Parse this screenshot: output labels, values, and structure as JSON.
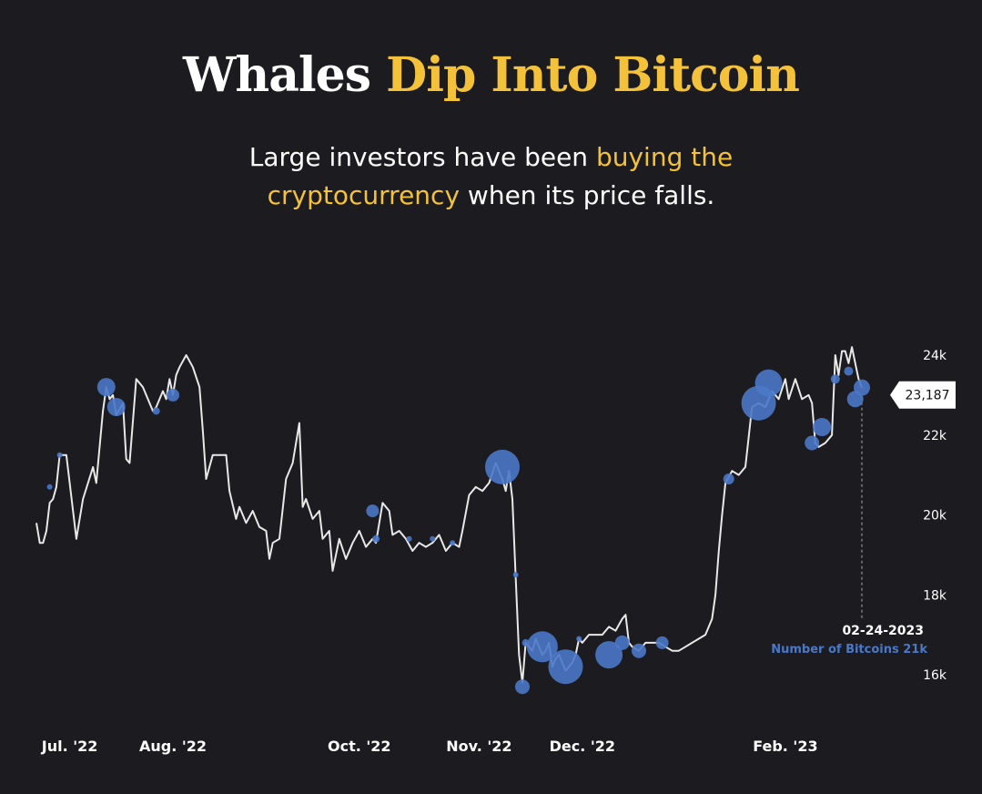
{
  "header": {
    "title_part1": "Whales",
    "title_part2": "Dip Into Bitcoin",
    "subtitle_part1": "Large investors have been",
    "subtitle_part2": "buying the",
    "subtitle_part3": "cryptocurrency",
    "subtitle_part4": "when its price falls."
  },
  "colors": {
    "background": "#1c1b20",
    "accent": "#f3c13a",
    "line": "#e8e8e8",
    "bubble": "#4a78c8"
  },
  "chart_data": {
    "type": "line",
    "y_range": [
      15500,
      24500
    ],
    "x_range": [
      "2022-06-21",
      "2023-02-27"
    ],
    "y_ticks": [
      {
        "value": 24000,
        "label": "24k"
      },
      {
        "value": 22000,
        "label": "22k"
      },
      {
        "value": 20000,
        "label": "20k"
      },
      {
        "value": 18000,
        "label": "18k"
      },
      {
        "value": 16000,
        "label": "16k"
      }
    ],
    "x_ticks": [
      {
        "date": "2022-07-01",
        "label": "Jul. '22"
      },
      {
        "date": "2022-08-01",
        "label": "Aug. '22"
      },
      {
        "date": "2022-09-26",
        "label": "Oct. '22"
      },
      {
        "date": "2022-11-01",
        "label": "Nov. '22"
      },
      {
        "date": "2022-12-02",
        "label": "Dec. '22"
      },
      {
        "date": "2023-02-01",
        "label": "Feb. '23"
      }
    ],
    "series": [
      {
        "points": [
          [
            "2022-06-21",
            19800
          ],
          [
            "2022-06-22",
            19300
          ],
          [
            "2022-06-23",
            19300
          ],
          [
            "2022-06-24",
            19600
          ],
          [
            "2022-06-25",
            20300
          ],
          [
            "2022-06-26",
            20400
          ],
          [
            "2022-06-27",
            20700
          ],
          [
            "2022-06-28",
            21500
          ],
          [
            "2022-06-30",
            21500
          ],
          [
            "2022-07-03",
            19400
          ],
          [
            "2022-07-05",
            20400
          ],
          [
            "2022-07-08",
            21200
          ],
          [
            "2022-07-09",
            20800
          ],
          [
            "2022-07-11",
            22600
          ],
          [
            "2022-07-12",
            23200
          ],
          [
            "2022-07-13",
            22900
          ],
          [
            "2022-07-14",
            23000
          ],
          [
            "2022-07-15",
            22500
          ],
          [
            "2022-07-17",
            22800
          ],
          [
            "2022-07-18",
            21400
          ],
          [
            "2022-07-19",
            21300
          ],
          [
            "2022-07-21",
            23400
          ],
          [
            "2022-07-23",
            23200
          ],
          [
            "2022-07-26",
            22600
          ],
          [
            "2022-07-27",
            22700
          ],
          [
            "2022-07-29",
            23100
          ],
          [
            "2022-07-30",
            22900
          ],
          [
            "2022-07-31",
            23400
          ],
          [
            "2022-08-01",
            23000
          ],
          [
            "2022-08-02",
            23500
          ],
          [
            "2022-08-03",
            23700
          ],
          [
            "2022-08-05",
            24000
          ],
          [
            "2022-08-07",
            23700
          ],
          [
            "2022-08-09",
            23200
          ],
          [
            "2022-08-10",
            22100
          ],
          [
            "2022-08-11",
            20900
          ],
          [
            "2022-08-13",
            21500
          ],
          [
            "2022-08-15",
            21500
          ],
          [
            "2022-08-17",
            21500
          ],
          [
            "2022-08-18",
            20600
          ],
          [
            "2022-08-20",
            19900
          ],
          [
            "2022-08-21",
            20200
          ],
          [
            "2022-08-23",
            19800
          ],
          [
            "2022-08-25",
            20100
          ],
          [
            "2022-08-27",
            19700
          ],
          [
            "2022-08-29",
            19600
          ],
          [
            "2022-08-30",
            18900
          ],
          [
            "2022-08-31",
            19300
          ],
          [
            "2022-09-02",
            19400
          ],
          [
            "2022-09-04",
            20900
          ],
          [
            "2022-09-06",
            21300
          ],
          [
            "2022-09-08",
            22300
          ],
          [
            "2022-09-09",
            20200
          ],
          [
            "2022-09-10",
            20400
          ],
          [
            "2022-09-12",
            19900
          ],
          [
            "2022-09-14",
            20100
          ],
          [
            "2022-09-15",
            19400
          ],
          [
            "2022-09-17",
            19600
          ],
          [
            "2022-09-18",
            18600
          ],
          [
            "2022-09-20",
            19400
          ],
          [
            "2022-09-22",
            18900
          ],
          [
            "2022-09-24",
            19300
          ],
          [
            "2022-09-26",
            19600
          ],
          [
            "2022-09-28",
            19200
          ],
          [
            "2022-09-30",
            19400
          ],
          [
            "2022-10-01",
            19300
          ],
          [
            "2022-10-03",
            20300
          ],
          [
            "2022-10-05",
            20100
          ],
          [
            "2022-10-06",
            19500
          ],
          [
            "2022-10-08",
            19600
          ],
          [
            "2022-10-10",
            19400
          ],
          [
            "2022-10-12",
            19100
          ],
          [
            "2022-10-14",
            19300
          ],
          [
            "2022-10-16",
            19200
          ],
          [
            "2022-10-18",
            19300
          ],
          [
            "2022-10-20",
            19500
          ],
          [
            "2022-10-22",
            19100
          ],
          [
            "2022-10-24",
            19300
          ],
          [
            "2022-10-26",
            19200
          ],
          [
            "2022-10-27",
            19600
          ],
          [
            "2022-10-29",
            20500
          ],
          [
            "2022-10-31",
            20700
          ],
          [
            "2022-11-02",
            20600
          ],
          [
            "2022-11-04",
            20800
          ],
          [
            "2022-11-06",
            21300
          ],
          [
            "2022-11-08",
            20900
          ],
          [
            "2022-11-09",
            20600
          ],
          [
            "2022-11-10",
            21100
          ],
          [
            "2022-11-11",
            20400
          ],
          [
            "2022-11-12",
            18400
          ],
          [
            "2022-11-13",
            16500
          ],
          [
            "2022-11-14",
            15800
          ],
          [
            "2022-11-15",
            16800
          ],
          [
            "2022-11-16",
            16700
          ],
          [
            "2022-11-17",
            16600
          ],
          [
            "2022-11-18",
            16900
          ],
          [
            "2022-11-20",
            16500
          ],
          [
            "2022-11-21",
            16600
          ],
          [
            "2022-11-22",
            16800
          ],
          [
            "2022-11-23",
            16200
          ],
          [
            "2022-11-24",
            16400
          ],
          [
            "2022-11-25",
            16500
          ],
          [
            "2022-11-27",
            16100
          ],
          [
            "2022-11-29",
            16300
          ],
          [
            "2022-11-30",
            16500
          ],
          [
            "2022-12-01",
            16900
          ],
          [
            "2022-12-02",
            16800
          ],
          [
            "2022-12-04",
            17000
          ],
          [
            "2022-12-06",
            17000
          ],
          [
            "2022-12-08",
            17000
          ],
          [
            "2022-12-10",
            17200
          ],
          [
            "2022-12-12",
            17100
          ],
          [
            "2022-12-14",
            17400
          ],
          [
            "2022-12-15",
            17500
          ],
          [
            "2022-12-16",
            16800
          ],
          [
            "2022-12-17",
            16700
          ],
          [
            "2022-12-19",
            16600
          ],
          [
            "2022-12-21",
            16800
          ],
          [
            "2022-12-23",
            16800
          ],
          [
            "2022-12-25",
            16800
          ],
          [
            "2022-12-27",
            16700
          ],
          [
            "2022-12-29",
            16600
          ],
          [
            "2022-12-31",
            16600
          ],
          [
            "2023-01-02",
            16700
          ],
          [
            "2023-01-04",
            16800
          ],
          [
            "2023-01-06",
            16900
          ],
          [
            "2023-01-08",
            17000
          ],
          [
            "2023-01-10",
            17400
          ],
          [
            "2023-01-11",
            18000
          ],
          [
            "2023-01-12",
            19100
          ],
          [
            "2023-01-13",
            20000
          ],
          [
            "2023-01-14",
            20800
          ],
          [
            "2023-01-16",
            21100
          ],
          [
            "2023-01-18",
            21000
          ],
          [
            "2023-01-20",
            21200
          ],
          [
            "2023-01-22",
            22700
          ],
          [
            "2023-01-24",
            22800
          ],
          [
            "2023-01-26",
            22700
          ],
          [
            "2023-01-28",
            23100
          ],
          [
            "2023-01-30",
            22900
          ],
          [
            "2023-02-01",
            23400
          ],
          [
            "2023-02-02",
            22900
          ],
          [
            "2023-02-04",
            23400
          ],
          [
            "2023-02-06",
            22900
          ],
          [
            "2023-02-08",
            23000
          ],
          [
            "2023-02-09",
            22800
          ],
          [
            "2023-02-10",
            21800
          ],
          [
            "2023-02-11",
            21700
          ],
          [
            "2023-02-13",
            21800
          ],
          [
            "2023-02-15",
            22000
          ],
          [
            "2023-02-16",
            24000
          ],
          [
            "2023-02-17",
            23500
          ],
          [
            "2023-02-18",
            24100
          ],
          [
            "2023-02-19",
            24100
          ],
          [
            "2023-02-20",
            23800
          ],
          [
            "2023-02-21",
            24200
          ],
          [
            "2023-02-22",
            23800
          ],
          [
            "2023-02-23",
            23400
          ],
          [
            "2023-02-24",
            23187
          ]
        ]
      }
    ],
    "bubbles": [
      {
        "date": "2022-06-25",
        "value": 20700,
        "size": 3
      },
      {
        "date": "2022-06-28",
        "value": 21500,
        "size": 3
      },
      {
        "date": "2022-07-12",
        "value": 23200,
        "size": 10
      },
      {
        "date": "2022-07-15",
        "value": 22700,
        "size": 10
      },
      {
        "date": "2022-07-27",
        "value": 22600,
        "size": 4
      },
      {
        "date": "2022-08-01",
        "value": 23000,
        "size": 7
      },
      {
        "date": "2022-09-30",
        "value": 20100,
        "size": 7
      },
      {
        "date": "2022-10-01",
        "value": 19400,
        "size": 4
      },
      {
        "date": "2022-10-11",
        "value": 19400,
        "size": 3
      },
      {
        "date": "2022-10-18",
        "value": 19400,
        "size": 3
      },
      {
        "date": "2022-10-24",
        "value": 19300,
        "size": 3
      },
      {
        "date": "2022-11-08",
        "value": 21200,
        "size": 19
      },
      {
        "date": "2022-11-12",
        "value": 18500,
        "size": 3
      },
      {
        "date": "2022-11-14",
        "value": 15700,
        "size": 8
      },
      {
        "date": "2022-11-15",
        "value": 16800,
        "size": 4
      },
      {
        "date": "2022-11-20",
        "value": 16700,
        "size": 17
      },
      {
        "date": "2022-11-27",
        "value": 16200,
        "size": 19
      },
      {
        "date": "2022-12-01",
        "value": 16900,
        "size": 3
      },
      {
        "date": "2022-12-10",
        "value": 16500,
        "size": 15
      },
      {
        "date": "2022-12-14",
        "value": 16800,
        "size": 8
      },
      {
        "date": "2022-12-19",
        "value": 16600,
        "size": 8
      },
      {
        "date": "2022-12-26",
        "value": 16800,
        "size": 7
      },
      {
        "date": "2023-01-15",
        "value": 20900,
        "size": 6
      },
      {
        "date": "2023-01-24",
        "value": 22800,
        "size": 19
      },
      {
        "date": "2023-01-27",
        "value": 23300,
        "size": 15
      },
      {
        "date": "2023-02-09",
        "value": 21800,
        "size": 8
      },
      {
        "date": "2023-02-12",
        "value": 22200,
        "size": 10
      },
      {
        "date": "2023-02-16",
        "value": 23400,
        "size": 5
      },
      {
        "date": "2023-02-20",
        "value": 23600,
        "size": 5
      },
      {
        "date": "2023-02-22",
        "value": 22900,
        "size": 9
      },
      {
        "date": "2023-02-24",
        "value": 23187,
        "size": 9
      }
    ],
    "annotation": {
      "date_label": "02-24-2023",
      "sub_label": "Number of Bitcoins 21k",
      "callout_value": "23,187"
    }
  }
}
